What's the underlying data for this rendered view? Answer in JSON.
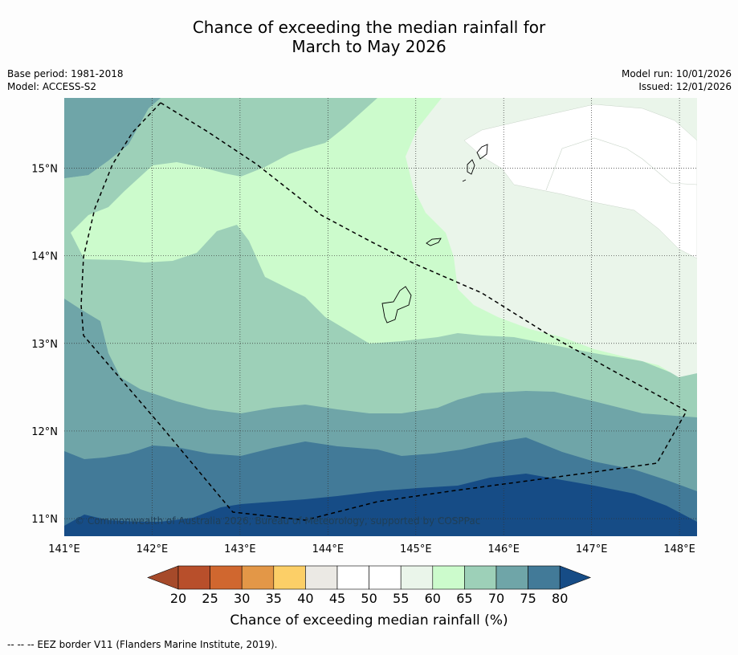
{
  "title": {
    "line1": "Chance of exceeding the median rainfall for",
    "line2": "March to May 2026"
  },
  "meta": {
    "base_period": "Base period: 1981-2018",
    "model": "Model: ACCESS-S2",
    "model_run": "Model run: 10/01/2026",
    "issued": "Issued: 12/01/2026"
  },
  "map": {
    "copyright": "© Commonwealth of Australia 2026, Bureau of Meteorology, supported by COSPPac",
    "lon_ticks": [
      "141°E",
      "142°E",
      "143°E",
      "144°E",
      "145°E",
      "146°E",
      "147°E",
      "148°E"
    ],
    "lon_values": [
      141,
      142,
      143,
      144,
      145,
      146,
      147,
      148
    ],
    "lat_ticks": [
      "11°N",
      "12°N",
      "13°N",
      "14°N",
      "15°N"
    ],
    "lat_values": [
      11,
      12,
      13,
      14,
      15
    ],
    "lon_range": [
      141,
      148.2
    ],
    "lat_range": [
      10.8,
      15.8
    ]
  },
  "colorbar": {
    "ticks": [
      "20",
      "25",
      "30",
      "35",
      "40",
      "45",
      "50",
      "55",
      "60",
      "65",
      "70",
      "75",
      "80"
    ],
    "colors": [
      "#a64a2a",
      "#b84f2b",
      "#d0672f",
      "#e39747",
      "#fccf67",
      "#ebe9e4",
      "#ffffff",
      "#ffffff",
      "#eaf5ea",
      "#ccfbcc",
      "#9dd0b8",
      "#6fa5a8",
      "#427a98",
      "#164c86"
    ],
    "label": "Chance of exceeding median rainfall (%)"
  },
  "footer": "-- -- -- EEZ border V11 (Flanders Marine Institute, 2019)."
}
